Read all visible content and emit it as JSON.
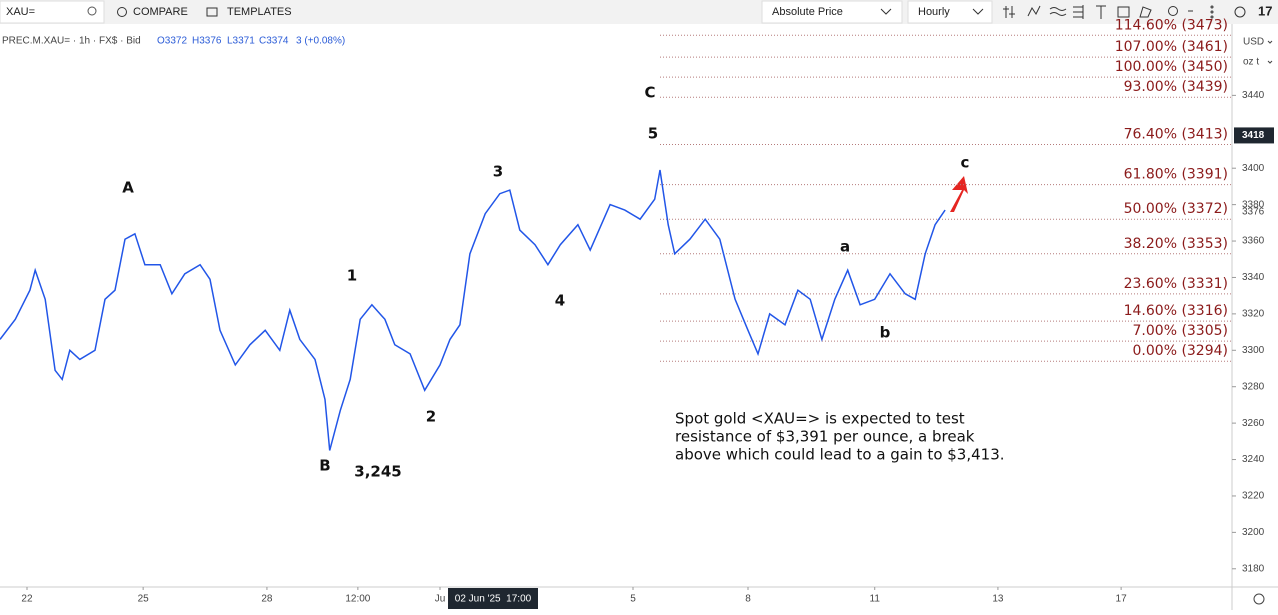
{
  "toolbar": {
    "symbol": "XAU=",
    "compare": "COMPARE",
    "templates": "TEMPLATES",
    "price_mode": "Absolute Price",
    "interval": "Hourly"
  },
  "legend": {
    "instrument": "PREC.M.XAU= · 1h · FX$ · Bid",
    "open": "O3372",
    "high": "H3376",
    "low": "L3371",
    "close": "C3374",
    "change": "3 (+0.08%)"
  },
  "axis_units": {
    "currency": "USD",
    "unit": "oz t"
  },
  "crosshair_label": "02 Jun '25  17:00",
  "chart_data": {
    "type": "line",
    "x": [
      0,
      0.26,
      0.51,
      0.6,
      0.77,
      0.94,
      1.06,
      1.19,
      1.36,
      1.62,
      1.79,
      1.96,
      2.13,
      2.3,
      2.47,
      2.73,
      2.93,
      3.15,
      3.41,
      3.58,
      3.75,
      4.01,
      4.26,
      4.52,
      4.77,
      4.94,
      5.11,
      5.37,
      5.54,
      5.62,
      5.8,
      5.97,
      6.14,
      6.34,
      6.56,
      6.73,
      6.99,
      7.24,
      7.5,
      7.67,
      7.84,
      8.01,
      8.27,
      8.52,
      8.69,
      8.86,
      9.12,
      9.34,
      9.55,
      9.85,
      10.06,
      10.4,
      10.65,
      10.91,
      11.16,
      11.25,
      11.39,
      11.5,
      11.76,
      12.02,
      12.27,
      12.53,
      12.75,
      12.92,
      13.12,
      13.38,
      13.6,
      13.81,
      14.01,
      14.23,
      14.45,
      14.66,
      14.91,
      15.17,
      15.43,
      15.6,
      15.77,
      15.94,
      16.11
    ],
    "series": [
      {
        "name": "PREC.M.XAU=",
        "color": "#2256e8",
        "values": [
          3306,
          3317,
          3333,
          3344,
          3328,
          3289,
          3284,
          3300,
          3295,
          3300,
          3328,
          3333,
          3361,
          3364,
          3347,
          3347,
          3331,
          3342,
          3347,
          3339,
          3311,
          3292,
          3303,
          3311,
          3300,
          3322,
          3306,
          3295,
          3273,
          3245,
          3267,
          3284,
          3317,
          3325,
          3317,
          3303,
          3298,
          3278,
          3292,
          3306,
          3314,
          3353,
          3375,
          3386,
          3388,
          3366,
          3358,
          3347,
          3358,
          3369,
          3355,
          3380,
          3377,
          3372,
          3383,
          3399,
          3369,
          3353,
          3361,
          3372,
          3361,
          3328,
          3311,
          3298,
          3320,
          3314,
          3333,
          3328,
          3306,
          3328,
          3344,
          3325,
          3328,
          3342,
          3331,
          3328,
          3353,
          3369,
          3377
        ]
      }
    ],
    "xlim": [
      0,
      21
    ],
    "xticks": [
      {
        "value": 0.46,
        "label": "22"
      },
      {
        "value": 2.44,
        "label": "25"
      },
      {
        "value": 4.55,
        "label": "28"
      },
      {
        "value": 6.1,
        "label": "12:00"
      },
      {
        "value": 7.5,
        "label": "Ju"
      },
      {
        "value": 10.79,
        "label": "5"
      },
      {
        "value": 12.75,
        "label": "8"
      },
      {
        "value": 14.91,
        "label": "11"
      },
      {
        "value": 17.01,
        "label": "13"
      },
      {
        "value": 19.11,
        "label": "17"
      }
    ],
    "ylim": [
      3170,
      3477
    ],
    "yticks": [
      3180,
      3200,
      3220,
      3240,
      3260,
      3280,
      3300,
      3320,
      3340,
      3360,
      3380,
      3400,
      3440
    ],
    "price_tag": 3418,
    "last_price": 3376,
    "fib_levels": [
      {
        "label": "114.60% (3473)",
        "value": 3473
      },
      {
        "label": "107.00% (3461)",
        "value": 3461
      },
      {
        "label": "100.00% (3450)",
        "value": 3450
      },
      {
        "label": "93.00% (3439)",
        "value": 3439
      },
      {
        "label": "76.40% (3413)",
        "value": 3413
      },
      {
        "label": "61.80% (3391)",
        "value": 3391
      },
      {
        "label": "50.00% (3372)",
        "value": 3372
      },
      {
        "label": "38.20% (3353)",
        "value": 3353
      },
      {
        "label": "23.60% (3331)",
        "value": 3331
      },
      {
        "label": "14.60% (3316)",
        "value": 3316
      },
      {
        "label": "7.00% (3305)",
        "value": 3305
      },
      {
        "label": "0.00% (3294)",
        "value": 3294
      }
    ],
    "wave_labels": [
      "A",
      "1",
      "B",
      "3,245",
      "2",
      "3",
      "4",
      "C",
      "5",
      "a",
      "b",
      "c"
    ],
    "note_lines": [
      "Spot gold <XAU=> is expected to test",
      "resistance of $3,391 per ounce, a break",
      "above which could lead to a gain to $3,413."
    ]
  }
}
